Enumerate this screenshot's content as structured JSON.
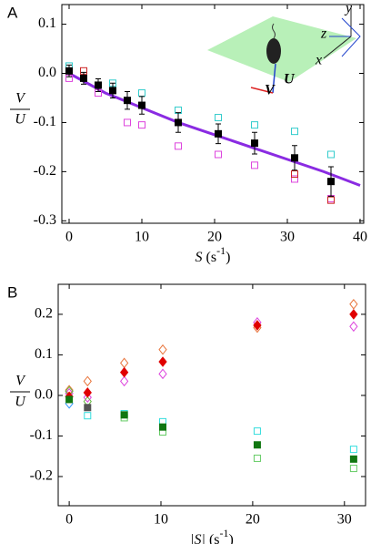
{
  "chart_data": [
    {
      "type": "scatter",
      "panel_label": "A",
      "ylabel": {
        "numerator": "V",
        "denominator": "U"
      },
      "xlabel_parts": [
        "S",
        " (s",
        "-1",
        ")"
      ],
      "inset_labels": [
        "y",
        "z",
        "x",
        "V",
        "U"
      ],
      "xlim": [
        -1,
        40.5
      ],
      "ylim": [
        -0.305,
        0.14
      ],
      "xticks": [
        0,
        10,
        20,
        30,
        40
      ],
      "yticks": [
        0.1,
        {
          "value": 0,
          "label": "0.0"
        },
        -0.1,
        -0.2,
        -0.3
      ],
      "series": [
        {
          "style": "line",
          "color": "#8a2be2",
          "x": [
            0,
            5,
            10,
            15,
            20,
            25,
            30,
            35,
            40
          ],
          "values": [
            0,
            -0.04,
            -0.07,
            -0.1,
            -0.125,
            -0.15,
            -0.175,
            -0.2,
            -0.228
          ]
        },
        {
          "style": "marker",
          "marker": "square",
          "filled": false,
          "color": "#33cccc",
          "x": [
            0,
            6,
            10,
            15,
            20.5,
            25.5,
            31,
            36
          ],
          "values": [
            0.015,
            -0.02,
            -0.04,
            -0.075,
            -0.09,
            -0.105,
            -0.118,
            -0.165
          ]
        },
        {
          "style": "marker",
          "marker": "square",
          "filled": false,
          "color": "#dd44dd",
          "x": [
            0,
            4,
            8,
            10,
            15,
            20.5,
            25.5,
            31,
            36
          ],
          "values": [
            -0.01,
            -0.04,
            -0.1,
            -0.105,
            -0.148,
            -0.165,
            -0.187,
            -0.215,
            -0.255
          ]
        },
        {
          "style": "marker",
          "marker": "square",
          "filled": false,
          "color": "#cc2222",
          "x": [
            2,
            31,
            36
          ],
          "values": [
            0.005,
            -0.205,
            -0.258
          ]
        },
        {
          "style": "marker",
          "marker": "square",
          "filled": true,
          "color": "#000000",
          "x": [
            0,
            2,
            4,
            6,
            8,
            10,
            15,
            20.5,
            25.5,
            31,
            36
          ],
          "values": [
            0.005,
            -0.01,
            -0.024,
            -0.035,
            -0.055,
            -0.065,
            -0.1,
            -0.123,
            -0.142,
            -0.172,
            -0.22
          ],
          "errors": [
            0.012,
            0.012,
            0.013,
            0.015,
            0.018,
            0.018,
            0.02,
            0.02,
            0.022,
            0.025,
            0.03
          ]
        }
      ]
    },
    {
      "type": "scatter",
      "panel_label": "B",
      "ylabel": {
        "numerator": "V",
        "denominator": "U"
      },
      "xlabel_parts": [
        "|S|",
        " (s",
        "-1",
        ")"
      ],
      "xlim": [
        -1.2,
        32.3
      ],
      "ylim": [
        -0.272,
        0.274
      ],
      "xticks": [
        0,
        10,
        20,
        30
      ],
      "yticks": [
        0.2,
        0.1,
        {
          "value": 0,
          "label": "0.0"
        },
        -0.1,
        -0.2
      ],
      "series": [
        {
          "style": "marker",
          "marker": "diamond",
          "filled": false,
          "color": "#e8743b",
          "x": [
            0,
            2,
            6,
            10.2,
            20.5,
            31
          ],
          "values": [
            0.013,
            0.035,
            0.08,
            0.113,
            0.167,
            0.225
          ]
        },
        {
          "style": "marker",
          "marker": "diamond",
          "filled": false,
          "color": "#dd44dd",
          "x": [
            0,
            2,
            6,
            10.2,
            20.5,
            31
          ],
          "values": [
            0.005,
            -0.005,
            0.035,
            0.053,
            0.18,
            0.17
          ]
        },
        {
          "style": "marker",
          "marker": "diamond",
          "filled": false,
          "color": "#3399ff",
          "x": [
            0
          ],
          "values": [
            -0.02
          ]
        },
        {
          "style": "marker",
          "marker": "diamond",
          "filled": false,
          "color": "#66bb44",
          "x": [
            0,
            2
          ],
          "values": [
            0.01,
            -0.015
          ]
        },
        {
          "style": "marker",
          "marker": "diamond",
          "filled": true,
          "color": "#e00000",
          "x": [
            0,
            2,
            6,
            10.2,
            20.5,
            31
          ],
          "values": [
            -0.003,
            0.007,
            0.057,
            0.083,
            0.173,
            0.2
          ]
        },
        {
          "style": "marker",
          "marker": "square",
          "filled": false,
          "color": "#33dddd",
          "x": [
            2,
            6,
            10.2,
            20.5,
            31
          ],
          "values": [
            -0.05,
            -0.045,
            -0.065,
            -0.088,
            -0.133
          ]
        },
        {
          "style": "marker",
          "marker": "square",
          "filled": false,
          "color": "#66cc66",
          "x": [
            6,
            10.2,
            20.5,
            31
          ],
          "values": [
            -0.055,
            -0.09,
            -0.155,
            -0.18
          ]
        },
        {
          "style": "marker",
          "marker": "square",
          "filled": true,
          "color": "#555555",
          "x": [
            2
          ],
          "values": [
            -0.03
          ]
        },
        {
          "style": "marker",
          "marker": "square",
          "filled": true,
          "color": "#117711",
          "x": [
            0,
            6,
            10.2,
            20.5,
            31
          ],
          "values": [
            -0.01,
            -0.048,
            -0.078,
            -0.122,
            -0.157
          ]
        }
      ]
    }
  ]
}
